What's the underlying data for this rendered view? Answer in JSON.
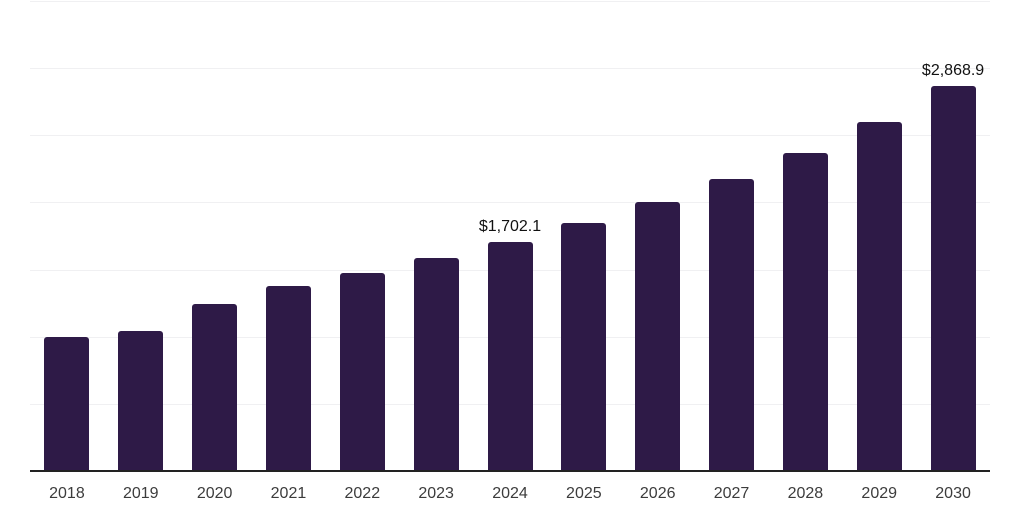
{
  "chart": {
    "background_color": "#ffffff",
    "bar_color": "#2e1a47",
    "axis_line_color": "#222222",
    "gridline_color": "#f0f0f2",
    "year_label_color": "#3c3c3c",
    "value_label_color": "#111111"
  },
  "chart_data": {
    "type": "bar",
    "title": "",
    "xlabel": "",
    "ylabel": "",
    "categories": [
      "2018",
      "2019",
      "2020",
      "2021",
      "2022",
      "2023",
      "2024",
      "2025",
      "2026",
      "2027",
      "2028",
      "2029",
      "2030"
    ],
    "values": [
      997,
      1044,
      1241,
      1380,
      1473,
      1584,
      1702.1,
      1849,
      2000,
      2173,
      2370,
      2597,
      2868.9
    ],
    "data_labels": {
      "2024": "$1,702.1",
      "2030": "$2,868.9"
    },
    "ylim": [
      0,
      3500
    ],
    "grid_interval": 500,
    "grid": "horizontal-only",
    "y_tick_labels": "none",
    "legend": "none"
  }
}
